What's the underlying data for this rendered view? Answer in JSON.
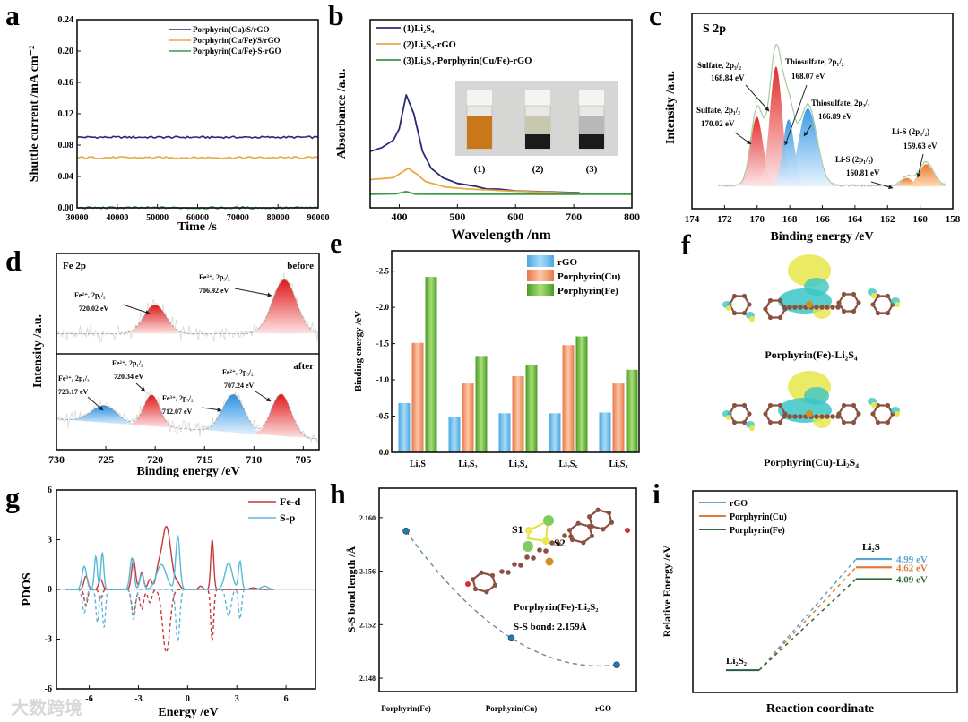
{
  "panel_letters": [
    "a",
    "b",
    "c",
    "d",
    "e",
    "f",
    "g",
    "h",
    "i"
  ],
  "watermark": "大数跨境",
  "chart_data": [
    {
      "panel": "a",
      "type": "line",
      "xlabel": "Time /s",
      "ylabel": "Shuttle current /mA cm⁻²",
      "xlim": [
        30000,
        90000
      ],
      "ylim": [
        0,
        0.24
      ],
      "xticks": [
        "30000",
        "40000",
        "50000",
        "60000",
        "70000",
        "80000",
        "90000"
      ],
      "yticks": [
        "0.00",
        "0.04",
        "0.08",
        "0.12",
        "0.16",
        "0.20",
        "0.24"
      ],
      "legend_position": "top-right",
      "series": [
        {
          "name": "Porphyrin(Cu)/S/rGO",
          "value": 0.09,
          "color": "#2b2a78"
        },
        {
          "name": "Porphyrin(Cu/Fe)/S/rGO",
          "value": 0.064,
          "color": "#e8a848"
        },
        {
          "name": "Porphyrin(Cu/Fe)-S-rGO",
          "value": 0.0,
          "color": "#3a9a4a"
        }
      ]
    },
    {
      "panel": "b",
      "type": "line",
      "xlabel": "Wavelength /nm",
      "ylabel": "Absorbance /a.u.",
      "xlim": [
        350,
        800
      ],
      "ylim": [
        0,
        1
      ],
      "xticks": [
        "400",
        "500",
        "600",
        "700",
        "800"
      ],
      "legend_position": "top-left",
      "series": [
        {
          "name": "(1)Li₂S₄",
          "color": "#2b2a78",
          "points": [
            [
              350,
              0.3
            ],
            [
              370,
              0.32
            ],
            [
              390,
              0.36
            ],
            [
              400,
              0.42
            ],
            [
              412,
              0.6
            ],
            [
              425,
              0.5
            ],
            [
              440,
              0.3
            ],
            [
              455,
              0.21
            ],
            [
              475,
              0.16
            ],
            [
              500,
              0.13
            ],
            [
              530,
              0.115
            ],
            [
              550,
              0.1
            ],
            [
              570,
              0.1
            ],
            [
              600,
              0.09
            ],
            [
              650,
              0.085
            ],
            [
              710,
              0.08
            ]
          ]
        },
        {
          "name": "(2)Li₂S₄-rGO",
          "color": "#e8a848",
          "points": [
            [
              350,
              0.15
            ],
            [
              390,
              0.16
            ],
            [
              405,
              0.19
            ],
            [
              415,
              0.21
            ],
            [
              430,
              0.18
            ],
            [
              445,
              0.14
            ],
            [
              480,
              0.11
            ],
            [
              520,
              0.1
            ],
            [
              600,
              0.088
            ],
            [
              700,
              0.078
            ],
            [
              800,
              0.075
            ]
          ]
        },
        {
          "name": "(3)Li₂S₄-Porphyrin(Cu/Fe)-rGO",
          "color": "#3a9a4a",
          "points": [
            [
              350,
              0.072
            ],
            [
              395,
              0.075
            ],
            [
              412,
              0.086
            ],
            [
              428,
              0.073
            ],
            [
              500,
              0.072
            ],
            [
              800,
              0.072
            ]
          ]
        }
      ],
      "inset_labels": [
        "(1)",
        "(2)",
        "(3)"
      ]
    },
    {
      "panel": "c",
      "type": "area",
      "title": "S 2p",
      "xlabel": "Binding energy /eV",
      "ylabel": "Intensity /a.u.",
      "xlim": [
        174,
        158
      ],
      "xticks": [
        "174",
        "172",
        "170",
        "168",
        "166",
        "164",
        "162",
        "160",
        "158"
      ],
      "peaks": [
        {
          "label": "Sulfate, 2p₁/₂",
          "value": "170.02 eV",
          "center": 170.02,
          "height": 0.25,
          "sigma": 0.38,
          "color": "red"
        },
        {
          "label": "Sulfate, 2p₃/₂",
          "value": "168.84 eV",
          "center": 168.84,
          "height": 0.43,
          "sigma": 0.38,
          "color": "red"
        },
        {
          "label": "Thiosulfate, 2p₁/₂",
          "value": "168.07 eV",
          "center": 168.07,
          "height": 0.24,
          "sigma": 0.35,
          "color": "blue"
        },
        {
          "label": "Thiosulfate, 2p₃/₂",
          "value": "166.89 eV",
          "center": 166.89,
          "height": 0.28,
          "sigma": 0.55,
          "color": "blue"
        },
        {
          "label": "Li-S (2p₁/₂)",
          "value": "160.81 eV",
          "center": 160.81,
          "height": 0.03,
          "sigma": 0.35,
          "color": "orange"
        },
        {
          "label": "Li-S (2p₃/₂)",
          "value": "159.63 eV",
          "center": 159.63,
          "height": 0.08,
          "sigma": 0.45,
          "color": "orange"
        }
      ]
    },
    {
      "panel": "d",
      "type": "area",
      "title": "Fe 2p",
      "xlabel": "Binding energy /eV",
      "ylabel": "Intensity /a.u.",
      "xlim": [
        730,
        703.4
      ],
      "xticks": [
        "730",
        "725",
        "720",
        "715",
        "710",
        "705"
      ],
      "subpanels": [
        {
          "label": "before",
          "peaks": [
            {
              "label": "Fe²⁺, 2p₁/₂",
              "value": "720.02 eV",
              "center": 720.02,
              "height": 0.29,
              "sigma": 1.1,
              "color": "red"
            },
            {
              "label": "Fe³⁺, 2p₃/₂",
              "value": "706.92 eV",
              "center": 706.92,
              "height": 0.54,
              "sigma": 1.2,
              "color": "red"
            }
          ]
        },
        {
          "label": "after",
          "peaks": [
            {
              "label": "Fe³⁺, 2p₁/₂",
              "value": "725.17 eV",
              "center": 725.17,
              "height": 0.18,
              "sigma": 1.3,
              "color": "blue"
            },
            {
              "label": "Fe²⁺, 2p₁/₂",
              "value": "720.34 eV",
              "center": 720.34,
              "height": 0.33,
              "sigma": 0.8,
              "color": "red"
            },
            {
              "label": "Fe³⁺, 2p₃/₂",
              "value": "712.07 eV",
              "center": 712.07,
              "height": 0.4,
              "sigma": 1.1,
              "color": "blue"
            },
            {
              "label": "Fe²⁺, 2p₃/₂",
              "value": "707.24 eV",
              "center": 707.24,
              "height": 0.44,
              "sigma": 1.0,
              "color": "red"
            }
          ]
        }
      ]
    },
    {
      "panel": "e",
      "type": "bar",
      "ylabel": "Binding energy /eV",
      "ylim": [
        0,
        -2.78
      ],
      "yticks": [
        "0.0",
        "-0.5",
        "-1.0",
        "-1.5",
        "-2.0",
        "-2.5"
      ],
      "categories": [
        "Li₂S",
        "Li₂S₂",
        "Li₂S₄",
        "Li₂S₆",
        "Li₂S₈"
      ],
      "legend_position": "top-right",
      "series": [
        {
          "name": "rGO",
          "color": "#6cc0ee",
          "values": [
            -0.68,
            -0.49,
            -0.54,
            -0.54,
            -0.55
          ]
        },
        {
          "name": "Porphyrin(Cu)",
          "color": "#f4a070",
          "values": [
            -1.51,
            -0.95,
            -1.05,
            -1.48,
            -0.95
          ]
        },
        {
          "name": "Porphyrin(Fe)",
          "color": "#7fca4c",
          "values": [
            -2.42,
            -1.33,
            -1.2,
            -1.6,
            -1.14
          ]
        }
      ]
    },
    {
      "panel": "f",
      "type": "other",
      "structures": [
        "Porphyrin(Fe)-Li₂S₄",
        "Porphyrin(Cu)-Li₂S₄"
      ]
    },
    {
      "panel": "g",
      "type": "line",
      "xlabel": "Energy /eV",
      "ylabel": "PDOS",
      "xlim": [
        -8,
        7.8
      ],
      "ylim": [
        -6,
        6
      ],
      "xticks": [
        "-6",
        "-3",
        "0",
        "3",
        "6"
      ],
      "yticks": [
        "-6",
        "-3",
        "0",
        "3",
        "6"
      ],
      "legend_position": "top-right",
      "series": [
        {
          "name": "Fe-d",
          "color": "#c83838",
          "up": [
            [
              -6.2,
              0.8,
              0.12
            ],
            [
              -5.3,
              0.6,
              0.12
            ],
            [
              -3.3,
              1.8,
              0.12
            ],
            [
              -2.8,
              1.0,
              0.12
            ],
            [
              -2.3,
              0.6,
              0.12
            ],
            [
              -1.8,
              0.8,
              0.15
            ],
            [
              -1.3,
              3.8,
              0.28
            ],
            [
              -0.6,
              0.3,
              0.15
            ],
            [
              0.8,
              0.2,
              0.12
            ],
            [
              1.5,
              3.0,
              0.09
            ],
            [
              4.0,
              0.1,
              0.2
            ]
          ],
          "down": [
            [
              -6.2,
              -1.0,
              0.1
            ],
            [
              -5.3,
              -0.6,
              0.1
            ],
            [
              -3.3,
              -1.5,
              0.12
            ],
            [
              -2.8,
              -1.2,
              0.12
            ],
            [
              -2.3,
              -0.8,
              0.12
            ],
            [
              -1.3,
              -3.8,
              0.22
            ],
            [
              1.5,
              -3.1,
              0.09
            ]
          ]
        },
        {
          "name": "S-p",
          "color": "#5ab8d8",
          "up": [
            [
              -6.3,
              1.4,
              0.14
            ],
            [
              -5.6,
              2.0,
              0.09
            ],
            [
              -5.2,
              2.2,
              0.09
            ],
            [
              -3.4,
              1.9,
              0.12
            ],
            [
              -2.8,
              0.9,
              0.12
            ],
            [
              -1.6,
              1.5,
              0.3
            ],
            [
              -0.6,
              3.2,
              0.13
            ],
            [
              2.5,
              1.6,
              0.22
            ],
            [
              3.2,
              1.7,
              0.1
            ],
            [
              4.7,
              0.2,
              0.2
            ]
          ],
          "down": [
            [
              -6.3,
              -1.4,
              0.12
            ],
            [
              -5.5,
              -2.0,
              0.09
            ],
            [
              -5.1,
              -2.3,
              0.09
            ],
            [
              -3.3,
              -1.8,
              0.12
            ],
            [
              -0.6,
              -3.2,
              0.12
            ],
            [
              2.5,
              -1.6,
              0.15
            ],
            [
              3.2,
              -1.8,
              0.09
            ]
          ]
        }
      ]
    },
    {
      "panel": "h",
      "type": "scatter",
      "ylabel": "S-S bond length /Å",
      "ylim": [
        2.147,
        2.1622
      ],
      "yticks": [
        "2.148",
        "2.152",
        "2.156",
        "2.160"
      ],
      "categories": [
        "Porphyrin(Fe)",
        "Porphyrin(Cu)",
        "rGO"
      ],
      "values": [
        2.159,
        2.151,
        2.149
      ],
      "annotation": {
        "atoms": [
          "S1",
          "S2"
        ],
        "structure": "Porphyrin(Fe)-Li₂S₂",
        "bond": "S-S bond: 2.159Å"
      }
    },
    {
      "panel": "i",
      "type": "line",
      "xlabel": "Reaction coordinate",
      "ylabel": "Relative Energy /eV",
      "ylim": [
        -1.0,
        8.05
      ],
      "states": [
        "Li₂S₂",
        "Li₂S"
      ],
      "legend_position": "top-left",
      "series": [
        {
          "name": "rGO",
          "color": "#5aa6d0",
          "values": [
            0,
            4.99
          ],
          "label": "4.99 eV"
        },
        {
          "name": "Porphyrin(Cu)",
          "color": "#e07b3a",
          "values": [
            0,
            4.62
          ],
          "label": "4.62 eV"
        },
        {
          "name": "Porphyrin(Fe)",
          "color": "#2d6a3a",
          "values": [
            0,
            4.09
          ],
          "label": "4.09 eV"
        }
      ]
    }
  ]
}
